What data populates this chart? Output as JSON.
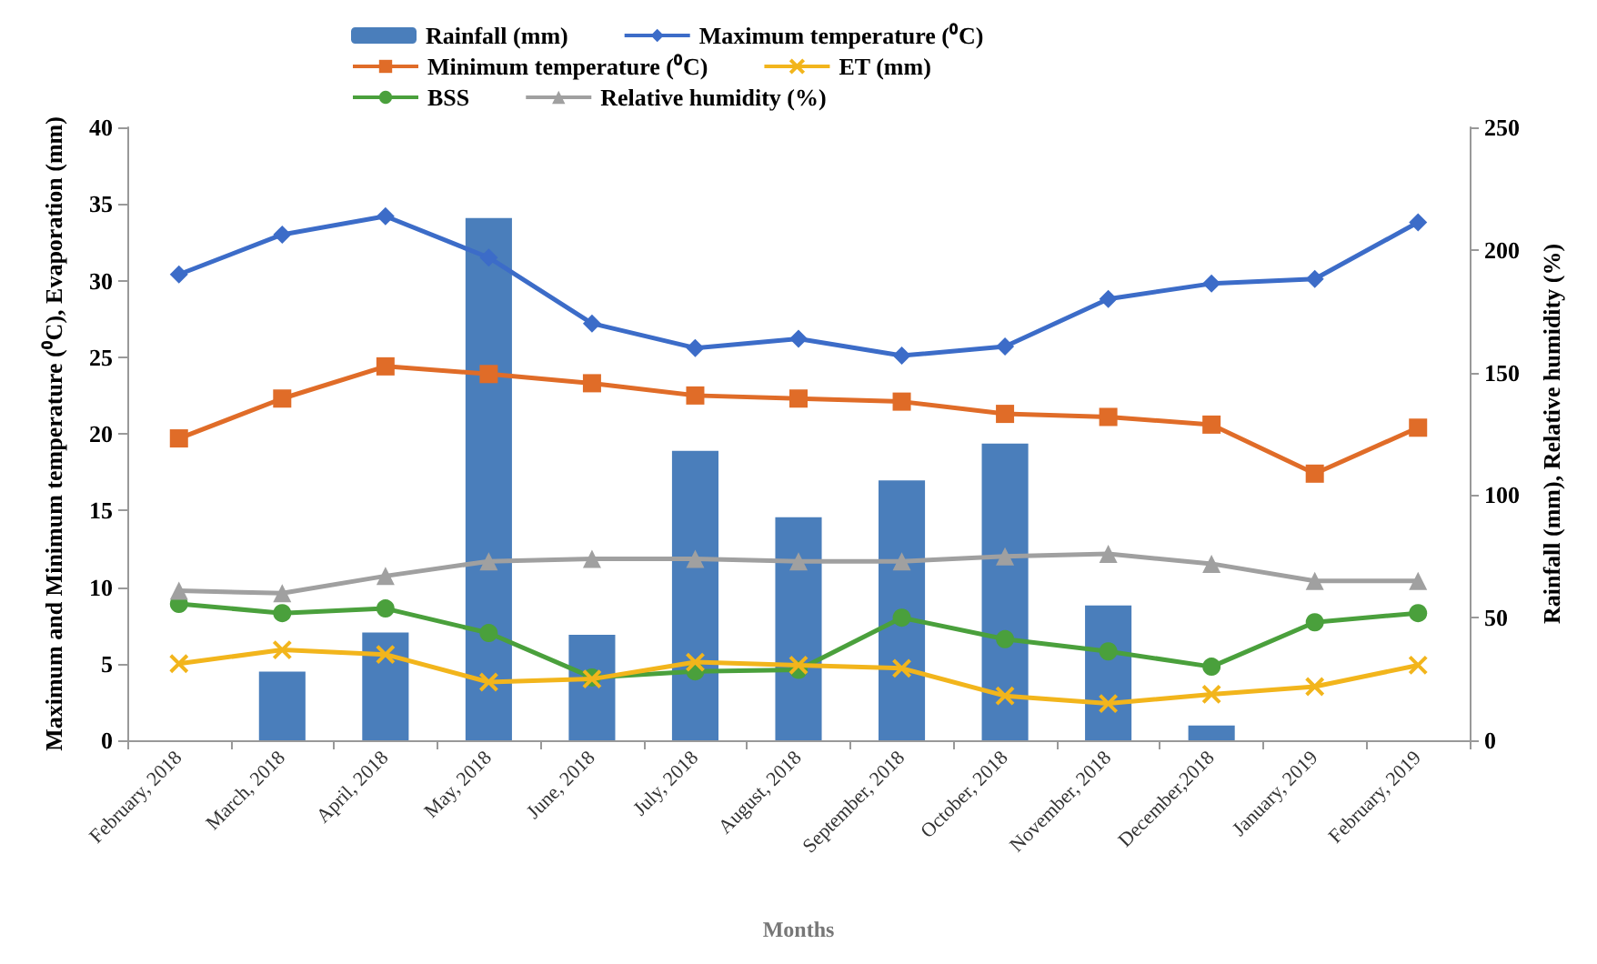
{
  "chart_data": {
    "type": "line",
    "xlabel": "Months",
    "ylabel": "Maximum and Minimum temperature (⁰C), Evaporation (mm)",
    "y2label": "Rainfall (mm), Relative humidity (%)",
    "categories": [
      "February, 2018",
      "March, 2018",
      "April, 2018",
      "May, 2018",
      "June, 2018",
      "July, 2018",
      "August, 2018",
      "September, 2018",
      "October, 2018",
      "November, 2018",
      "December,2018",
      "January, 2019",
      "February, 2019"
    ],
    "series": [
      {
        "name": "Rainfall (mm)",
        "type": "bar",
        "axis": "y2",
        "color": "#4a7ebb",
        "values": [
          null,
          28,
          44,
          213,
          43,
          118,
          91,
          106,
          121,
          55,
          6,
          null,
          null
        ]
      },
      {
        "name": "Maximum temperature (⁰C)",
        "color": "#3c6cc8",
        "marker": "diamond",
        "values": [
          30.4,
          33.0,
          34.2,
          31.5,
          27.2,
          25.6,
          26.2,
          25.1,
          25.7,
          28.8,
          29.8,
          30.1,
          33.8
        ]
      },
      {
        "name": "Minimum temperature (⁰C)",
        "color": "#e06c28",
        "marker": "square",
        "values": [
          19.7,
          22.3,
          24.4,
          23.9,
          23.3,
          22.5,
          22.3,
          22.1,
          21.3,
          21.1,
          20.6,
          17.4,
          20.4
        ]
      },
      {
        "name": "ET (mm)",
        "color": "#f2b51c",
        "marker": "cross",
        "values": [
          5.0,
          5.9,
          5.6,
          3.8,
          4.0,
          5.1,
          4.9,
          4.7,
          2.9,
          2.4,
          3.0,
          3.5,
          4.9
        ]
      },
      {
        "name": "BSS",
        "color": "#4aa03c",
        "marker": "circle",
        "values": [
          8.9,
          8.3,
          8.6,
          7.0,
          4.1,
          4.5,
          4.6,
          8.0,
          6.6,
          5.8,
          4.8,
          7.7,
          8.3
        ]
      },
      {
        "name": "Relative humidity (%)",
        "axis": "y2",
        "color": "#a0a0a0",
        "marker": "triangle",
        "values": [
          61,
          60,
          67,
          73,
          74,
          74,
          73,
          73,
          75,
          76,
          72,
          65,
          65
        ]
      }
    ],
    "ylim": [
      0,
      40
    ],
    "yticks": [
      0,
      5,
      10,
      15,
      20,
      25,
      30,
      35,
      40
    ],
    "y2lim": [
      0,
      250
    ],
    "y2ticks": [
      0,
      50,
      100,
      150,
      200,
      250
    ],
    "grid": false,
    "legend": "top"
  }
}
